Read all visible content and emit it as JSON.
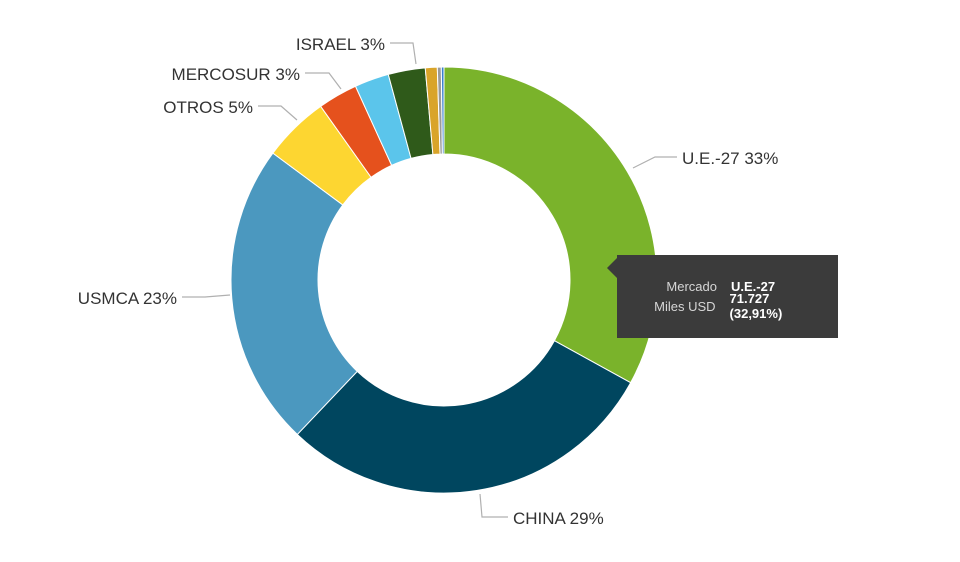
{
  "chart_data": {
    "type": "pie",
    "variant": "donut",
    "title": "",
    "unit": "Miles USD",
    "slices": [
      {
        "name": "U.E.-27",
        "label": "U.E.-27 33%",
        "value": 32.91,
        "color": "#7ab32b"
      },
      {
        "name": "CHINA",
        "label": "CHINA 29%",
        "value": 29.0,
        "color": "#00465f"
      },
      {
        "name": "USMCA",
        "label": "USMCA 23%",
        "value": 23.0,
        "color": "#4b98bf"
      },
      {
        "name": "OTROS",
        "label": "OTROS 5%",
        "value": 5.0,
        "color": "#fdd631"
      },
      {
        "name": "MERCOSUR",
        "label": "MERCOSUR 3%",
        "value": 3.0,
        "color": "#e5511d"
      },
      {
        "name": "",
        "label": "",
        "value": 2.6,
        "color": "#5bc5eb"
      },
      {
        "name": "ISRAEL",
        "label": "ISRAEL 3%",
        "value": 2.8,
        "color": "#2f5a1a"
      },
      {
        "name": "",
        "label": "",
        "value": 0.9,
        "color": "#d9a42a"
      },
      {
        "name": "",
        "label": "",
        "value": 0.3,
        "color": "#9a9a9a"
      },
      {
        "name": "",
        "label": "",
        "value": 0.2,
        "color": "#3a7fcf"
      }
    ],
    "legend": "none"
  },
  "tooltip": {
    "rows": [
      {
        "key": "Mercado",
        "value": "U.E.-27"
      },
      {
        "key": "Miles USD",
        "value": "71.727 (32,91%)"
      }
    ]
  }
}
